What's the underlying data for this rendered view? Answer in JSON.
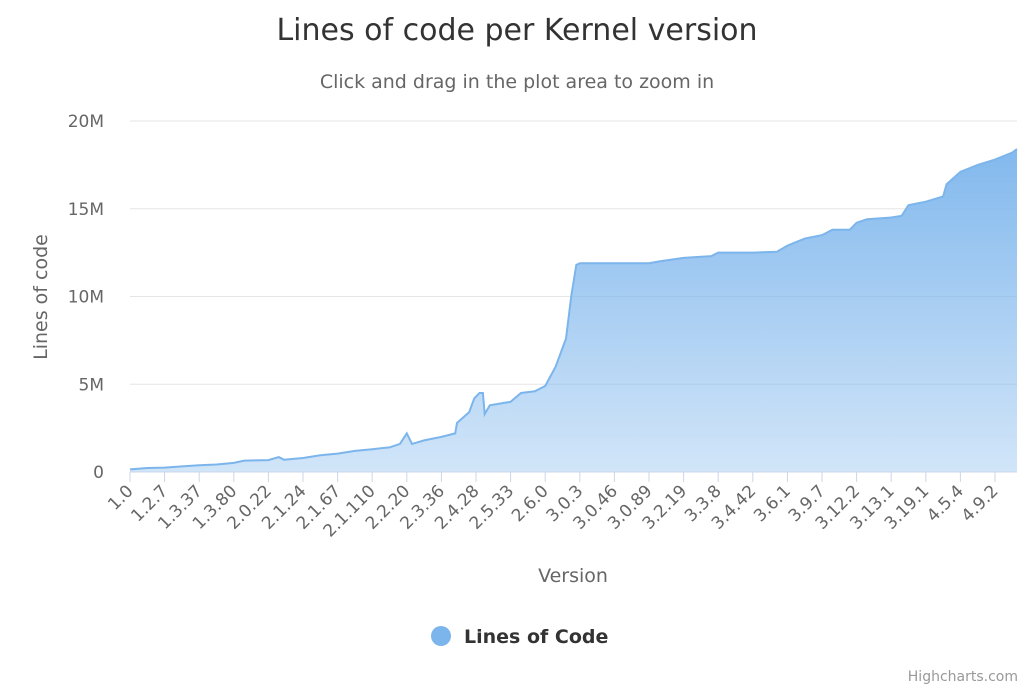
{
  "chart_data": {
    "type": "area",
    "title": "Lines of code per Kernel version",
    "subtitle": "Click and drag in the plot area to zoom in",
    "xlabel": "Version",
    "ylabel": "Lines of code",
    "ylim": [
      0,
      20000000
    ],
    "y_ticks": [
      {
        "value": 0,
        "label": "0"
      },
      {
        "value": 5000000,
        "label": "5M"
      },
      {
        "value": 10000000,
        "label": "10M"
      },
      {
        "value": 15000000,
        "label": "15M"
      },
      {
        "value": 20000000,
        "label": "20M"
      }
    ],
    "x_tick_labels": [
      "1.0",
      "1.2.7",
      "1.3.37",
      "1.3.80",
      "2.0.22",
      "2.1.24",
      "2.1.67",
      "2.1.110",
      "2.2.20",
      "2.3.36",
      "2.4.28",
      "2.5.33",
      "2.6.0",
      "3.0.3",
      "3.0.46",
      "3.0.89",
      "3.2.19",
      "3.3.8",
      "3.4.42",
      "3.6.1",
      "3.9.7",
      "3.12.2",
      "3.13.1",
      "3.19.1",
      "4.5.4",
      "4.9.2"
    ],
    "grid": true,
    "legend_position": "bottom-center",
    "color": "#7cb5ec",
    "series": [
      {
        "name": "Lines of Code",
        "approx_profile_by_tick": [
          {
            "x": 0,
            "y": 150000
          },
          {
            "x": 0.5,
            "y": 230000
          },
          {
            "x": 1,
            "y": 250000
          },
          {
            "x": 1.5,
            "y": 320000
          },
          {
            "x": 2,
            "y": 380000
          },
          {
            "x": 2.5,
            "y": 430000
          },
          {
            "x": 3,
            "y": 520000
          },
          {
            "x": 3.3,
            "y": 650000
          },
          {
            "x": 4,
            "y": 680000
          },
          {
            "x": 4.3,
            "y": 850000
          },
          {
            "x": 4.45,
            "y": 700000
          },
          {
            "x": 5,
            "y": 800000
          },
          {
            "x": 5.5,
            "y": 950000
          },
          {
            "x": 6,
            "y": 1050000
          },
          {
            "x": 6.5,
            "y": 1200000
          },
          {
            "x": 7,
            "y": 1300000
          },
          {
            "x": 7.5,
            "y": 1400000
          },
          {
            "x": 7.8,
            "y": 1600000
          },
          {
            "x": 8.0,
            "y": 2200000
          },
          {
            "x": 8.15,
            "y": 1600000
          },
          {
            "x": 8.5,
            "y": 1800000
          },
          {
            "x": 9,
            "y": 2000000
          },
          {
            "x": 9.4,
            "y": 2200000
          },
          {
            "x": 9.45,
            "y": 2800000
          },
          {
            "x": 9.8,
            "y": 3400000
          },
          {
            "x": 9.95,
            "y": 4200000
          },
          {
            "x": 10.1,
            "y": 4500000
          },
          {
            "x": 10.2,
            "y": 4500000
          },
          {
            "x": 10.25,
            "y": 3300000
          },
          {
            "x": 10.4,
            "y": 3800000
          },
          {
            "x": 11,
            "y": 4000000
          },
          {
            "x": 11.3,
            "y": 4500000
          },
          {
            "x": 11.7,
            "y": 4600000
          },
          {
            "x": 12,
            "y": 4900000
          },
          {
            "x": 12.3,
            "y": 6000000
          },
          {
            "x": 12.6,
            "y": 7600000
          },
          {
            "x": 12.75,
            "y": 10000000
          },
          {
            "x": 12.9,
            "y": 11800000
          },
          {
            "x": 13,
            "y": 11900000
          },
          {
            "x": 14,
            "y": 11900000
          },
          {
            "x": 15,
            "y": 11900000
          },
          {
            "x": 15.3,
            "y": 12000000
          },
          {
            "x": 16,
            "y": 12200000
          },
          {
            "x": 16.8,
            "y": 12300000
          },
          {
            "x": 17,
            "y": 12500000
          },
          {
            "x": 18,
            "y": 12500000
          },
          {
            "x": 18.7,
            "y": 12550000
          },
          {
            "x": 19,
            "y": 12900000
          },
          {
            "x": 19.5,
            "y": 13300000
          },
          {
            "x": 20,
            "y": 13500000
          },
          {
            "x": 20.3,
            "y": 13800000
          },
          {
            "x": 20.8,
            "y": 13800000
          },
          {
            "x": 21,
            "y": 14200000
          },
          {
            "x": 21.3,
            "y": 14400000
          },
          {
            "x": 22,
            "y": 14500000
          },
          {
            "x": 22.3,
            "y": 14600000
          },
          {
            "x": 22.5,
            "y": 15200000
          },
          {
            "x": 23,
            "y": 15400000
          },
          {
            "x": 23.5,
            "y": 15700000
          },
          {
            "x": 23.6,
            "y": 16400000
          },
          {
            "x": 24,
            "y": 17100000
          },
          {
            "x": 24.5,
            "y": 17500000
          },
          {
            "x": 25,
            "y": 17800000
          },
          {
            "x": 25.5,
            "y": 18200000
          },
          {
            "x": 25.85,
            "y": 18400000
          }
        ]
      }
    ]
  },
  "credits": "Highcharts.com"
}
